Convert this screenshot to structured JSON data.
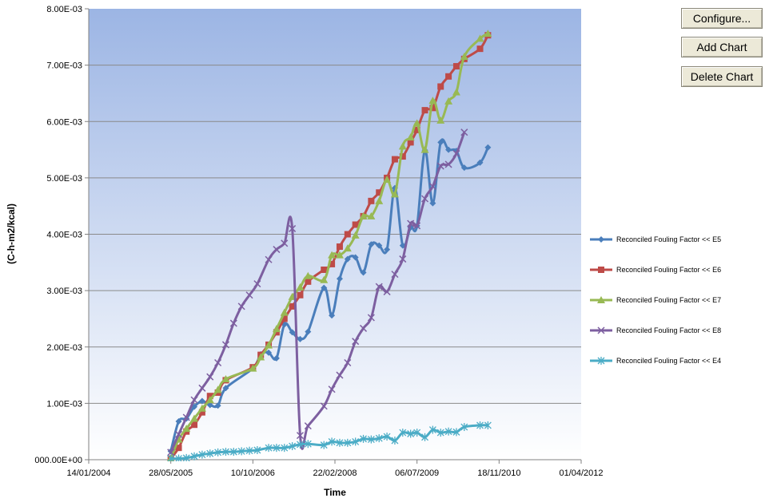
{
  "buttons": {
    "configure": "Configure...",
    "add_chart": "Add Chart",
    "delete_chart": "Delete Chart"
  },
  "colors": {
    "E5": "#4a7ebb",
    "E6": "#be4b48",
    "E7": "#98b954",
    "E8": "#7d5fa0",
    "E4": "#4bacc6",
    "plot_top": "#9cb5e4",
    "plot_bottom": "#ffffff"
  },
  "chart_data": {
    "type": "line",
    "xlabel": "Time",
    "ylabel": "(C-h-m2/kcal)",
    "x_ticks": [
      "14/01/2004",
      "28/05/2005",
      "10/10/2006",
      "22/02/2008",
      "06/07/2009",
      "18/11/2010",
      "01/04/2012"
    ],
    "x_tick_dates": [
      "2004-01-14",
      "2005-05-28",
      "2006-10-10",
      "2008-02-22",
      "2009-07-06",
      "2010-11-18",
      "2012-04-01"
    ],
    "y_ticks": [
      "000.00E+00",
      "1.00E-03",
      "2.00E-03",
      "3.00E-03",
      "4.00E-03",
      "5.00E-03",
      "6.00E-03",
      "7.00E-03",
      "8.00E-03"
    ],
    "xlim": [
      "2004-01-14",
      "2012-04-01"
    ],
    "ylim": [
      0,
      0.008
    ],
    "grid": true,
    "legend_position": "right",
    "series": [
      {
        "name": "Reconciled Fouling Factor << E5",
        "color_key": "E5",
        "marker": "diamond",
        "points": [
          [
            "2005-05-28",
            0.00015
          ],
          [
            "2005-07-15",
            0.00068
          ],
          [
            "2005-08-31",
            0.00073
          ],
          [
            "2005-10-18",
            0.00094
          ],
          [
            "2005-12-05",
            0.00104
          ],
          [
            "2006-01-22",
            0.00097
          ],
          [
            "2006-03-11",
            0.00096
          ],
          [
            "2006-04-28",
            0.00127
          ],
          [
            "2006-10-10",
            0.00162
          ],
          [
            "2006-11-27",
            0.00187
          ],
          [
            "2007-01-14",
            0.0019
          ],
          [
            "2007-03-03",
            0.0018
          ],
          [
            "2007-04-20",
            0.0024
          ],
          [
            "2007-06-07",
            0.00226
          ],
          [
            "2007-07-25",
            0.00214
          ],
          [
            "2007-09-11",
            0.00227
          ],
          [
            "2007-12-17",
            0.00305
          ],
          [
            "2008-02-03",
            0.00256
          ],
          [
            "2008-03-22",
            0.00321
          ],
          [
            "2008-05-09",
            0.00356
          ],
          [
            "2008-06-26",
            0.00359
          ],
          [
            "2008-08-13",
            0.00332
          ],
          [
            "2008-09-30",
            0.00382
          ],
          [
            "2008-11-17",
            0.0038
          ],
          [
            "2009-01-04",
            0.00373
          ],
          [
            "2009-02-21",
            0.00482
          ],
          [
            "2009-04-10",
            0.0038
          ],
          [
            "2009-05-28",
            0.00412
          ],
          [
            "2009-07-06",
            0.00415
          ],
          [
            "2009-08-23",
            0.00549
          ],
          [
            "2009-10-10",
            0.00455
          ],
          [
            "2009-11-27",
            0.00563
          ],
          [
            "2010-01-14",
            0.0055
          ],
          [
            "2010-03-03",
            0.00548
          ],
          [
            "2010-04-20",
            0.00518
          ],
          [
            "2010-07-25",
            0.00527
          ],
          [
            "2010-09-11",
            0.00554
          ]
        ]
      },
      {
        "name": "Reconciled Fouling Factor << E6",
        "color_key": "E6",
        "marker": "square",
        "points": [
          [
            "2005-05-28",
            2e-05
          ],
          [
            "2005-07-15",
            0.00021
          ],
          [
            "2005-08-31",
            0.0005
          ],
          [
            "2005-10-18",
            0.00062
          ],
          [
            "2005-12-05",
            0.00084
          ],
          [
            "2006-01-22",
            0.00113
          ],
          [
            "2006-03-11",
            0.00119
          ],
          [
            "2006-04-28",
            0.00141
          ],
          [
            "2006-10-10",
            0.00164
          ],
          [
            "2006-11-27",
            0.00186
          ],
          [
            "2007-01-14",
            0.00204
          ],
          [
            "2007-03-03",
            0.00226
          ],
          [
            "2007-04-20",
            0.0025
          ],
          [
            "2007-06-07",
            0.00272
          ],
          [
            "2007-07-25",
            0.00292
          ],
          [
            "2007-09-11",
            0.00316
          ],
          [
            "2007-12-17",
            0.00337
          ],
          [
            "2008-02-03",
            0.00347
          ],
          [
            "2008-03-22",
            0.00378
          ],
          [
            "2008-05-09",
            0.004
          ],
          [
            "2008-06-26",
            0.00417
          ],
          [
            "2008-08-13",
            0.00432
          ],
          [
            "2008-09-30",
            0.00459
          ],
          [
            "2008-11-17",
            0.00474
          ],
          [
            "2009-01-04",
            0.005
          ],
          [
            "2009-02-21",
            0.00533
          ],
          [
            "2009-04-10",
            0.00538
          ],
          [
            "2009-05-28",
            0.00563
          ],
          [
            "2009-07-06",
            0.00585
          ],
          [
            "2009-08-23",
            0.0062
          ],
          [
            "2009-10-10",
            0.00624
          ],
          [
            "2009-11-27",
            0.00662
          ],
          [
            "2010-01-14",
            0.0068
          ],
          [
            "2010-03-03",
            0.00698
          ],
          [
            "2010-04-20",
            0.00711
          ],
          [
            "2010-07-25",
            0.00729
          ],
          [
            "2010-09-11",
            0.00753
          ]
        ]
      },
      {
        "name": "Reconciled Fouling Factor << E7",
        "color_key": "E7",
        "marker": "triangle",
        "points": [
          [
            "2005-05-28",
            2e-05
          ],
          [
            "2005-07-15",
            0.00036
          ],
          [
            "2005-08-31",
            0.00055
          ],
          [
            "2005-10-18",
            0.00073
          ],
          [
            "2005-12-05",
            0.00091
          ],
          [
            "2006-01-22",
            0.00106
          ],
          [
            "2006-03-11",
            0.00124
          ],
          [
            "2006-04-28",
            0.00143
          ],
          [
            "2006-10-10",
            0.00162
          ],
          [
            "2006-11-27",
            0.00182
          ],
          [
            "2007-01-14",
            0.00203
          ],
          [
            "2007-03-03",
            0.00232
          ],
          [
            "2007-04-20",
            0.00261
          ],
          [
            "2007-06-07",
            0.00289
          ],
          [
            "2007-07-25",
            0.00306
          ],
          [
            "2007-09-11",
            0.00326
          ],
          [
            "2007-12-17",
            0.00319
          ],
          [
            "2008-02-03",
            0.00363
          ],
          [
            "2008-03-22",
            0.00363
          ],
          [
            "2008-05-09",
            0.00375
          ],
          [
            "2008-06-26",
            0.00398
          ],
          [
            "2008-08-13",
            0.00432
          ],
          [
            "2008-09-30",
            0.00432
          ],
          [
            "2008-11-17",
            0.00459
          ],
          [
            "2009-01-04",
            0.00497
          ],
          [
            "2009-02-21",
            0.00471
          ],
          [
            "2009-04-10",
            0.00556
          ],
          [
            "2009-05-28",
            0.00572
          ],
          [
            "2009-07-06",
            0.00597
          ],
          [
            "2009-08-23",
            0.0055
          ],
          [
            "2009-10-10",
            0.00637
          ],
          [
            "2009-11-27",
            0.00602
          ],
          [
            "2010-01-14",
            0.00636
          ],
          [
            "2010-03-03",
            0.00652
          ],
          [
            "2010-04-20",
            0.00715
          ],
          [
            "2010-07-25",
            0.00747
          ],
          [
            "2010-09-11",
            0.00756
          ]
        ]
      },
      {
        "name": "Reconciled Fouling Factor << E8",
        "color_key": "E8",
        "marker": "x",
        "points": [
          [
            "2005-05-28",
            0.00013
          ],
          [
            "2005-07-15",
            0.00045
          ],
          [
            "2005-08-31",
            0.00075
          ],
          [
            "2005-10-18",
            0.00106
          ],
          [
            "2005-12-05",
            0.00127
          ],
          [
            "2006-01-22",
            0.00147
          ],
          [
            "2006-03-11",
            0.00172
          ],
          [
            "2006-04-28",
            0.00204
          ],
          [
            "2006-06-15",
            0.00242
          ],
          [
            "2006-08-02",
            0.00272
          ],
          [
            "2006-09-19",
            0.00292
          ],
          [
            "2006-11-06",
            0.00312
          ],
          [
            "2007-01-14",
            0.00355
          ],
          [
            "2007-03-03",
            0.00373
          ],
          [
            "2007-04-20",
            0.00384
          ],
          [
            "2007-06-07",
            0.0041
          ],
          [
            "2007-07-25",
            0.00043
          ],
          [
            "2007-09-11",
            0.0006
          ],
          [
            "2007-12-17",
            0.00095
          ],
          [
            "2008-02-03",
            0.00125
          ],
          [
            "2008-03-22",
            0.0015
          ],
          [
            "2008-05-09",
            0.00172
          ],
          [
            "2008-06-26",
            0.0021
          ],
          [
            "2008-08-13",
            0.00233
          ],
          [
            "2008-09-30",
            0.00252
          ],
          [
            "2008-11-17",
            0.00307
          ],
          [
            "2009-01-04",
            0.00298
          ],
          [
            "2009-02-21",
            0.00329
          ],
          [
            "2009-04-10",
            0.00356
          ],
          [
            "2009-05-28",
            0.00419
          ],
          [
            "2009-07-06",
            0.00415
          ],
          [
            "2009-08-23",
            0.00463
          ],
          [
            "2009-10-10",
            0.00485
          ],
          [
            "2009-11-27",
            0.00521
          ],
          [
            "2010-01-14",
            0.00524
          ],
          [
            "2010-03-03",
            0.00543
          ],
          [
            "2010-04-20",
            0.00581
          ]
        ]
      },
      {
        "name": "Reconciled Fouling Factor << E4",
        "color_key": "E4",
        "marker": "asterisk",
        "points": [
          [
            "2005-05-28",
            2e-05
          ],
          [
            "2005-07-15",
            2e-05
          ],
          [
            "2005-08-31",
            3e-05
          ],
          [
            "2005-10-18",
            6e-05
          ],
          [
            "2005-12-05",
            9e-05
          ],
          [
            "2006-01-22",
            0.00011
          ],
          [
            "2006-03-11",
            0.00013
          ],
          [
            "2006-04-28",
            0.00014
          ],
          [
            "2006-06-15",
            0.00014
          ],
          [
            "2006-08-02",
            0.00015
          ],
          [
            "2006-09-19",
            0.00016
          ],
          [
            "2006-11-06",
            0.00017
          ],
          [
            "2007-01-14",
            0.00021
          ],
          [
            "2007-03-03",
            0.00021
          ],
          [
            "2007-04-20",
            0.00021
          ],
          [
            "2007-06-07",
            0.00024
          ],
          [
            "2007-07-25",
            0.00027
          ],
          [
            "2007-09-11",
            0.00028
          ],
          [
            "2007-12-17",
            0.00026
          ],
          [
            "2008-02-03",
            0.00032
          ],
          [
            "2008-03-22",
            0.0003
          ],
          [
            "2008-05-09",
            0.0003
          ],
          [
            "2008-06-26",
            0.00032
          ],
          [
            "2008-08-13",
            0.00037
          ],
          [
            "2008-09-30",
            0.00036
          ],
          [
            "2008-11-17",
            0.00038
          ],
          [
            "2009-01-04",
            0.00041
          ],
          [
            "2009-02-21",
            0.00034
          ],
          [
            "2009-04-10",
            0.00048
          ],
          [
            "2009-05-28",
            0.00046
          ],
          [
            "2009-07-06",
            0.00048
          ],
          [
            "2009-08-23",
            0.0004
          ],
          [
            "2009-10-10",
            0.00053
          ],
          [
            "2009-11-27",
            0.00048
          ],
          [
            "2010-01-14",
            0.0005
          ],
          [
            "2010-03-03",
            0.00049
          ],
          [
            "2010-04-20",
            0.00058
          ],
          [
            "2010-07-25",
            0.00061
          ],
          [
            "2010-09-11",
            0.00061
          ]
        ]
      }
    ]
  }
}
